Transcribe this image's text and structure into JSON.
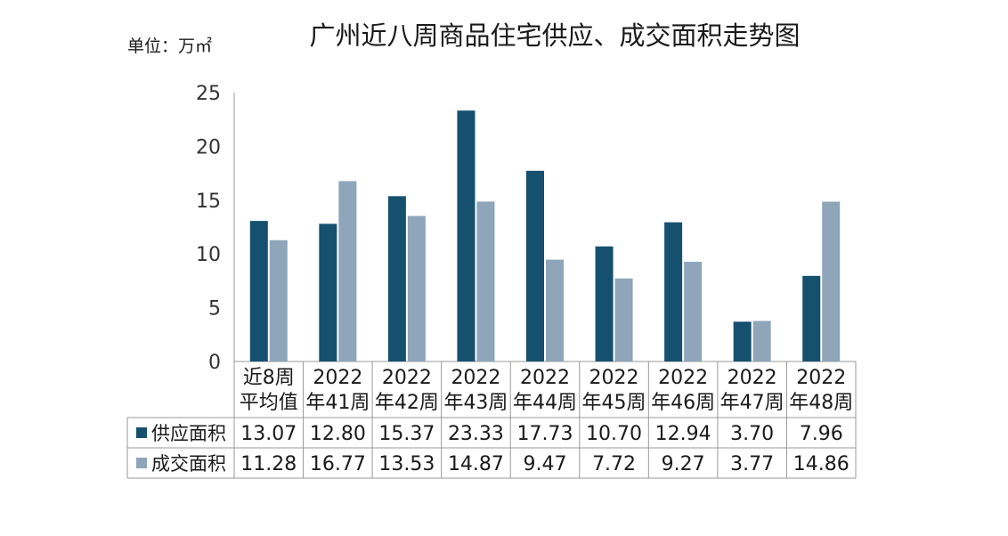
{
  "title": "广州近八周商品住宅供应、成交面积走势图",
  "unit_label": "单位：万㎡",
  "colors": {
    "supply": "#15506f",
    "deal": "#8fa5ba",
    "axis": "#999999"
  },
  "chart_data": {
    "type": "bar",
    "title": "广州近八周商品住宅供应、成交面积走势图",
    "ylabel": "单位：万㎡",
    "ylim": [
      0,
      25
    ],
    "yticks": [
      "0",
      "5",
      "10",
      "15",
      "20",
      "25"
    ],
    "categories": [
      [
        "近8周",
        "平均值"
      ],
      [
        "2022",
        "年41周"
      ],
      [
        "2022",
        "年42周"
      ],
      [
        "2022",
        "年43周"
      ],
      [
        "2022",
        "年44周"
      ],
      [
        "2022",
        "年45周"
      ],
      [
        "2022",
        "年46周"
      ],
      [
        "2022",
        "年47周"
      ],
      [
        "2022",
        "年48周"
      ]
    ],
    "series": [
      {
        "name": "供应面积",
        "color": "#15506f",
        "values": [
          13.07,
          12.8,
          15.37,
          23.33,
          17.73,
          10.7,
          12.94,
          3.7,
          7.96
        ],
        "labels": [
          "13.07",
          "12.80",
          "15.37",
          "23.33",
          "17.73",
          "10.70",
          "12.94",
          "3.70",
          "7.96"
        ]
      },
      {
        "name": "成交面积",
        "color": "#8fa5ba",
        "values": [
          11.28,
          16.77,
          13.53,
          14.87,
          9.47,
          7.72,
          9.27,
          3.77,
          14.86
        ],
        "labels": [
          "11.28",
          "16.77",
          "13.53",
          "14.87",
          "9.47",
          "7.72",
          "9.27",
          "3.77",
          "14.86"
        ]
      }
    ],
    "legend": "data-table-left",
    "grid": false
  }
}
